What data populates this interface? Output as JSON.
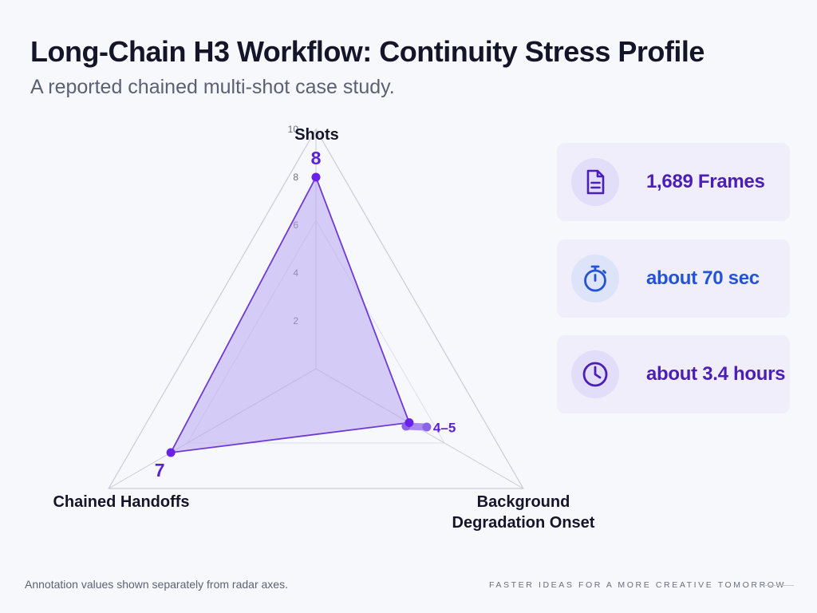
{
  "title": "Long-Chain H3 Workflow: Continuity Stress Profile",
  "subtitle": "A reported chained multi-shot case study.",
  "chart_data": {
    "type": "radar",
    "axes": [
      "Shots",
      "Background\nDegradation Onset",
      "Chained Handoffs"
    ],
    "values": [
      8,
      4.5,
      7
    ],
    "value_labels": [
      "8",
      "4–5",
      "7"
    ],
    "range_marker": {
      "axis": "Background\nDegradation Onset",
      "from": 4,
      "to": 5
    },
    "tick_labels": [
      "2",
      "4",
      "6",
      "8",
      "10"
    ],
    "rmax": 10,
    "grid": true,
    "colors": {
      "fill": "#b9a5f2",
      "stroke": "#6d3ad6",
      "point": "#6b22e8",
      "label": "#5b1fd6",
      "grid": "#c9cbd8"
    }
  },
  "stats": [
    {
      "value": "1,689 Frames",
      "icon": "document-icon",
      "color": "#4b1fb5",
      "badge_bg": "#e2ddf8"
    },
    {
      "value": "about 70 sec",
      "icon": "stopwatch-icon",
      "color": "#2453d6",
      "badge_bg": "#dde3f8"
    },
    {
      "value": "about 3.4 hours",
      "icon": "clock-icon",
      "color": "#4b1fb5",
      "badge_bg": "#e2ddf8"
    }
  ],
  "footer": {
    "note": "Annotation values shown separately from radar axes.",
    "tagline": "FASTER IDEAS FOR A MORE CREATIVE TOMORROW"
  }
}
